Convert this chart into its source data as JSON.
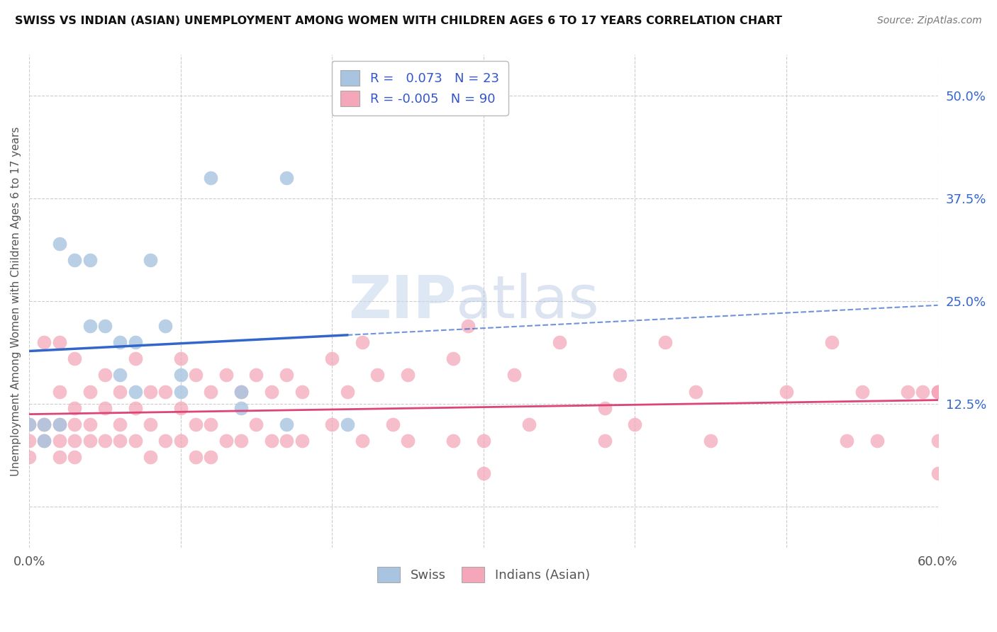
{
  "title": "SWISS VS INDIAN (ASIAN) UNEMPLOYMENT AMONG WOMEN WITH CHILDREN AGES 6 TO 17 YEARS CORRELATION CHART",
  "source": "Source: ZipAtlas.com",
  "ylabel": "Unemployment Among Women with Children Ages 6 to 17 years",
  "xlim": [
    0.0,
    0.6
  ],
  "ylim": [
    -0.05,
    0.55
  ],
  "xticks": [
    0.0,
    0.1,
    0.2,
    0.3,
    0.4,
    0.5,
    0.6
  ],
  "yticks_right": [
    0.0,
    0.125,
    0.25,
    0.375,
    0.5
  ],
  "ytick_right_labels": [
    "",
    "12.5%",
    "25.0%",
    "37.5%",
    "50.0%"
  ],
  "swiss_color": "#a8c4e0",
  "indian_color": "#f4a7b9",
  "swiss_R": 0.073,
  "swiss_N": 23,
  "indian_R": -0.005,
  "indian_N": 90,
  "legend_R_color": "#3355cc",
  "trend_swiss_color": "#3366cc",
  "trend_indian_color": "#dd4477",
  "swiss_x": [
    0.02,
    0.03,
    0.04,
    0.04,
    0.05,
    0.06,
    0.06,
    0.07,
    0.07,
    0.08,
    0.09,
    0.1,
    0.1,
    0.12,
    0.14,
    0.14,
    0.17,
    0.17,
    0.21,
    0.0,
    0.01,
    0.01,
    0.02
  ],
  "swiss_y": [
    0.32,
    0.3,
    0.3,
    0.22,
    0.22,
    0.2,
    0.16,
    0.2,
    0.14,
    0.3,
    0.22,
    0.16,
    0.14,
    0.4,
    0.14,
    0.12,
    0.4,
    0.1,
    0.1,
    0.1,
    0.1,
    0.08,
    0.1
  ],
  "indian_x": [
    0.0,
    0.0,
    0.0,
    0.01,
    0.01,
    0.01,
    0.02,
    0.02,
    0.02,
    0.02,
    0.02,
    0.03,
    0.03,
    0.03,
    0.03,
    0.03,
    0.04,
    0.04,
    0.04,
    0.05,
    0.05,
    0.05,
    0.06,
    0.06,
    0.06,
    0.07,
    0.07,
    0.07,
    0.08,
    0.08,
    0.08,
    0.09,
    0.09,
    0.1,
    0.1,
    0.1,
    0.11,
    0.11,
    0.11,
    0.12,
    0.12,
    0.12,
    0.13,
    0.13,
    0.14,
    0.14,
    0.15,
    0.15,
    0.16,
    0.16,
    0.17,
    0.17,
    0.18,
    0.18,
    0.2,
    0.2,
    0.21,
    0.22,
    0.22,
    0.23,
    0.24,
    0.25,
    0.25,
    0.28,
    0.28,
    0.29,
    0.3,
    0.3,
    0.32,
    0.33,
    0.35,
    0.38,
    0.38,
    0.39,
    0.4,
    0.42,
    0.44,
    0.45,
    0.5,
    0.53,
    0.54,
    0.55,
    0.56,
    0.58,
    0.59,
    0.6,
    0.6,
    0.6,
    0.6,
    0.6
  ],
  "indian_y": [
    0.1,
    0.08,
    0.06,
    0.2,
    0.1,
    0.08,
    0.2,
    0.14,
    0.1,
    0.08,
    0.06,
    0.18,
    0.12,
    0.1,
    0.08,
    0.06,
    0.14,
    0.1,
    0.08,
    0.16,
    0.12,
    0.08,
    0.14,
    0.1,
    0.08,
    0.18,
    0.12,
    0.08,
    0.14,
    0.1,
    0.06,
    0.14,
    0.08,
    0.18,
    0.12,
    0.08,
    0.16,
    0.1,
    0.06,
    0.14,
    0.1,
    0.06,
    0.16,
    0.08,
    0.14,
    0.08,
    0.16,
    0.1,
    0.14,
    0.08,
    0.16,
    0.08,
    0.14,
    0.08,
    0.18,
    0.1,
    0.14,
    0.2,
    0.08,
    0.16,
    0.1,
    0.16,
    0.08,
    0.18,
    0.08,
    0.22,
    0.08,
    0.04,
    0.16,
    0.1,
    0.2,
    0.12,
    0.08,
    0.16,
    0.1,
    0.2,
    0.14,
    0.08,
    0.14,
    0.2,
    0.08,
    0.14,
    0.08,
    0.14,
    0.14,
    0.14,
    0.08,
    0.04,
    0.14,
    0.14
  ],
  "watermark_zip": "ZIP",
  "watermark_atlas": "atlas",
  "background_color": "#ffffff",
  "grid_color": "#cccccc"
}
